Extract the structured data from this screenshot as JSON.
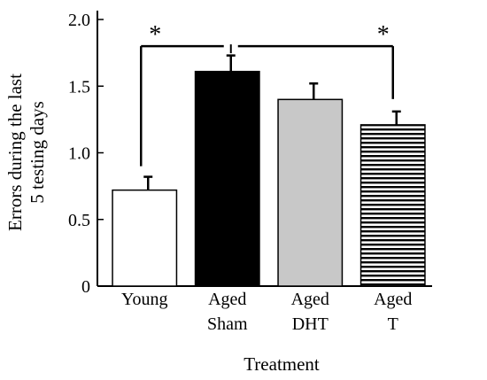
{
  "chart_data": {
    "type": "bar",
    "title": "",
    "xlabel": "Treatment",
    "ylabel_lines": [
      "Errors during the last",
      "5 testing days"
    ],
    "ylim": [
      0,
      2.0
    ],
    "yticks": [
      {
        "value": 0,
        "label": "0"
      },
      {
        "value": 0.5,
        "label": "0.5"
      },
      {
        "value": 1.0,
        "label": "1.0"
      },
      {
        "value": 1.5,
        "label": "1.5"
      },
      {
        "value": 2.0,
        "label": "2.0"
      }
    ],
    "categories": [
      {
        "lines": [
          "Young"
        ],
        "fill": "white"
      },
      {
        "lines": [
          "Aged",
          "Sham"
        ],
        "fill": "black"
      },
      {
        "lines": [
          "Aged",
          "DHT"
        ],
        "fill": "lightgray"
      },
      {
        "lines": [
          "Aged",
          "T"
        ],
        "fill": "horizontal-stripes"
      }
    ],
    "values": [
      0.72,
      1.61,
      1.4,
      1.21
    ],
    "errors": [
      0.1,
      0.12,
      0.12,
      0.1
    ],
    "significance": [
      {
        "from": 0,
        "to": 1,
        "label": "*"
      },
      {
        "from": 1,
        "to": 3,
        "label": "*"
      }
    ],
    "grid": false,
    "legend": "none"
  }
}
